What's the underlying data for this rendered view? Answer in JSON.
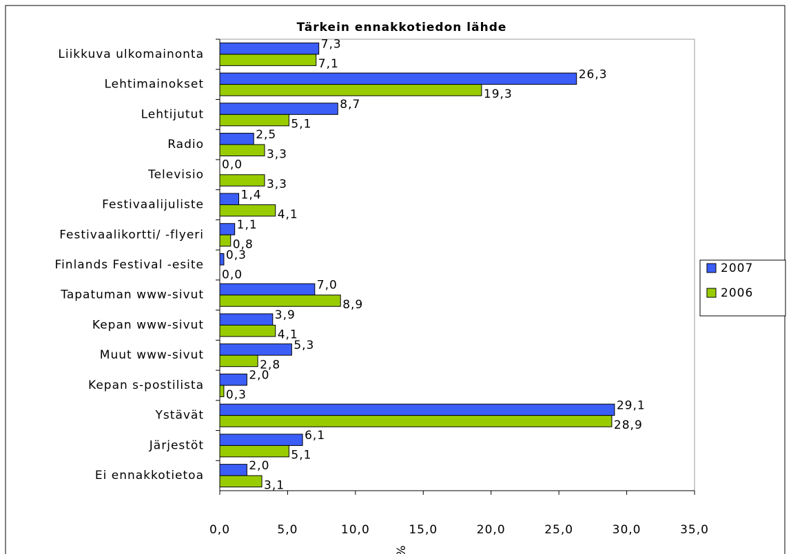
{
  "chart_data": {
    "type": "bar",
    "orientation": "horizontal",
    "title": "Tärkein ennakkotiedon lähde",
    "x_label": "%",
    "categories": [
      "Liikkuva ulkomainonta",
      "Lehtimainokset",
      "Lehtijutut",
      "Radio",
      "Televisio",
      "Festivaalijuliste",
      "Festivaalikortti/ -flyeri",
      "Finlands Festival -esite",
      "Tapatuman www-sivut",
      "Kepan www-sivut",
      "Muut www-sivut",
      "Kepan s-postilista",
      "Ystävät",
      "Järjestöt",
      "Ei ennakkotietoa"
    ],
    "series": [
      {
        "name": "2007",
        "color": "#3b5ef7",
        "values": [
          7.3,
          26.3,
          8.7,
          2.5,
          0.0,
          1.4,
          1.1,
          0.3,
          7.0,
          3.9,
          5.3,
          2.0,
          29.1,
          6.1,
          2.0
        ],
        "value_labels": [
          "7,3",
          "26,3",
          "8,7",
          "2,5",
          "0,0",
          "1,4",
          "1,1",
          "0,3",
          "7,0",
          "3,9",
          "5,3",
          "2,0",
          "29,1",
          "6,1",
          "2,0"
        ]
      },
      {
        "name": "2006",
        "color": "#99cc00",
        "values": [
          7.1,
          19.3,
          5.1,
          3.3,
          3.3,
          4.1,
          0.8,
          0.0,
          8.9,
          4.1,
          2.8,
          0.3,
          28.9,
          5.1,
          3.1
        ],
        "value_labels": [
          "7,1",
          "19,3",
          "5,1",
          "3,3",
          "3,3",
          "4,1",
          "0,8",
          "0,0",
          "8,9",
          "4,1",
          "2,8",
          "0,3",
          "28,9",
          "5,1",
          "3,1"
        ]
      }
    ],
    "xlim": [
      0,
      35
    ],
    "xticks": [
      {
        "value": 0,
        "label": "0,0"
      },
      {
        "value": 5,
        "label": "5,0"
      },
      {
        "value": 10,
        "label": "10,0"
      },
      {
        "value": 15,
        "label": "15,0"
      },
      {
        "value": 20,
        "label": "20,0"
      },
      {
        "value": 25,
        "label": "25,0"
      },
      {
        "value": 30,
        "label": "30,0"
      },
      {
        "value": 35,
        "label": "35,0"
      }
    ],
    "legend": "right"
  }
}
